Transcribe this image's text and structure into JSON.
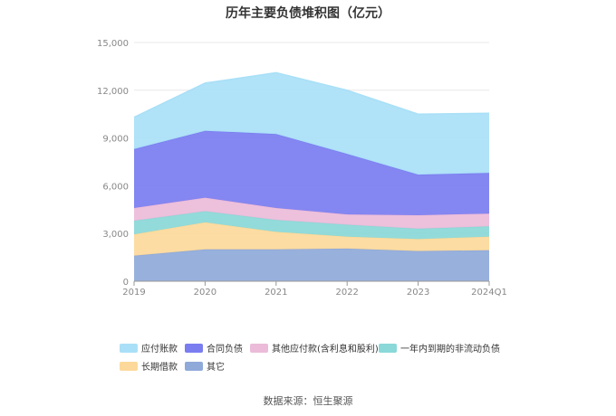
{
  "chart_data": {
    "type": "area",
    "title": "历年主要负债堆积图（亿元）",
    "categories": [
      "2019",
      "2020",
      "2021",
      "2022",
      "2023",
      "2024Q1"
    ],
    "yticks": [
      "0",
      "3,000",
      "6,000",
      "9,000",
      "12,000",
      "15,000"
    ],
    "ylim": [
      0,
      15000
    ],
    "grid": true,
    "legend_position": "bottom",
    "series": [
      {
        "name": "其它",
        "color": "#8fa9d9",
        "values": [
          1600,
          2000,
          2000,
          2050,
          1900,
          1950
        ]
      },
      {
        "name": "长期借款",
        "color": "#fcd99a",
        "values": [
          1350,
          1700,
          1100,
          750,
          750,
          850
        ]
      },
      {
        "name": "一年内到期的非流动负债",
        "color": "#8ad8d8",
        "values": [
          850,
          700,
          750,
          750,
          650,
          650
        ]
      },
      {
        "name": "其他应付款(含利息和股利)",
        "color": "#ebbbd9",
        "values": [
          800,
          850,
          750,
          650,
          850,
          800
        ]
      },
      {
        "name": "合同负债",
        "color": "#7a7df0",
        "values": [
          3700,
          4200,
          4650,
          3800,
          2550,
          2550
        ]
      },
      {
        "name": "应付账款",
        "color": "#a9e0f7",
        "values": [
          2000,
          3000,
          3850,
          4000,
          3800,
          3750
        ]
      }
    ],
    "legend_order": [
      "应付账款",
      "合同负债",
      "其他应付款(含利息和股利)",
      "一年内到期的非流动负债",
      "长期借款",
      "其它"
    ],
    "source": "数据来源：恒生聚源"
  }
}
